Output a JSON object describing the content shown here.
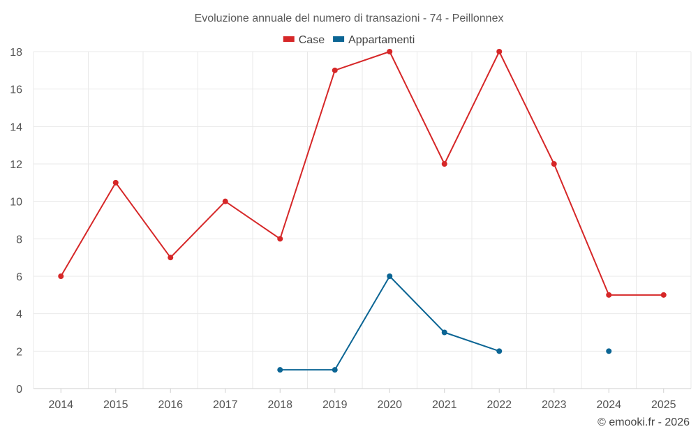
{
  "chart_data": {
    "type": "line",
    "title": "Evoluzione annuale del numero di transazioni - 74 - Peillonnex",
    "xlabel": "",
    "ylabel": "",
    "ylim": [
      0,
      18
    ],
    "y_ticks": [
      0,
      2,
      4,
      6,
      8,
      10,
      12,
      14,
      16,
      18
    ],
    "categories": [
      "2014",
      "2015",
      "2016",
      "2017",
      "2018",
      "2019",
      "2020",
      "2021",
      "2022",
      "2023",
      "2024",
      "2025"
    ],
    "grid": true,
    "legend_position": "top-center",
    "series": [
      {
        "name": "Case",
        "color": "#d62728",
        "values": [
          6,
          11,
          7,
          10,
          8,
          17,
          18,
          12,
          18,
          12,
          5,
          5
        ]
      },
      {
        "name": "Appartamenti",
        "color": "#0b6594",
        "values": [
          null,
          null,
          null,
          null,
          1,
          1,
          6,
          3,
          2,
          null,
          2,
          null
        ]
      }
    ]
  },
  "credit": "© emooki.fr - 2026"
}
